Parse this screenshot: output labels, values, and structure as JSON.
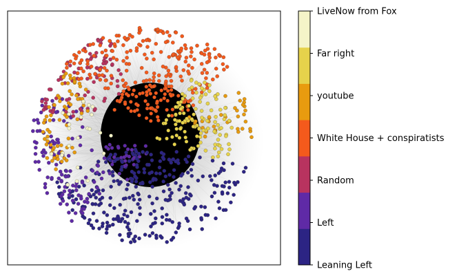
{
  "figure": {
    "type": "network-graph-with-categorical-colorbar"
  },
  "network": {
    "edge_color": "#9a9a9a",
    "center_color": "#000000",
    "node_outline_color": "#333333"
  },
  "colorbar": {
    "categories": [
      {
        "label": "Leaning Left",
        "color": "#2c2484"
      },
      {
        "label": "Left",
        "color": "#5f2aa6"
      },
      {
        "label": "Random",
        "color": "#b8335f"
      },
      {
        "label": "White House + conspiratists",
        "color": "#f45a1c"
      },
      {
        "label": "youtube",
        "color": "#e89b0f"
      },
      {
        "label": "Far right",
        "color": "#e6d24b"
      },
      {
        "label": "LiveNow from Fox",
        "color": "#f5f4c8"
      }
    ]
  }
}
